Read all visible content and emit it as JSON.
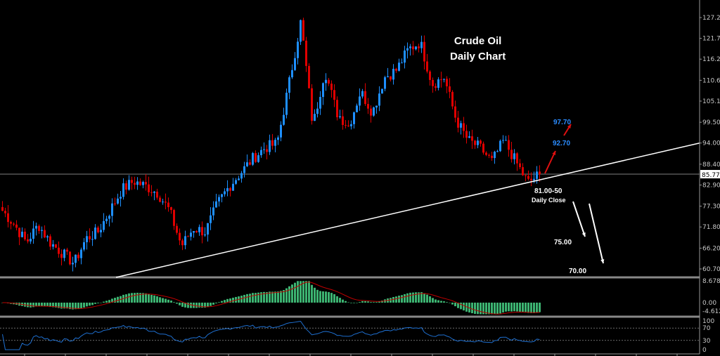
{
  "chart_data": {
    "type": "candlestick",
    "title": "Crude Oil",
    "subtitle": "Daily Chart",
    "price_axis_ticks": [
      "127.20",
      "121.70",
      "116.20",
      "110.60",
      "105.10",
      "99.50",
      "94.00",
      "88.40",
      "82.90",
      "77.30",
      "71.80",
      "66.20",
      "60.70"
    ],
    "ylim": [
      60.7,
      127.2
    ],
    "current_price": "85.77",
    "close_keypoints": [
      76.1,
      72.4,
      67.7,
      72.4,
      67.7,
      64.9,
      62.2,
      68.7,
      70.5,
      76.1,
      81.7,
      83.9,
      82.6,
      80.8,
      76.1,
      66.8,
      71.5,
      70.5,
      77.9,
      82.6,
      86.3,
      90.0,
      92.8,
      93.8,
      109.6,
      126.3,
      98.4,
      113.3,
      102.1,
      98.4,
      107.7,
      102.1,
      111.4,
      113.3,
      118.8,
      120.7,
      109.6,
      111.4,
      100.2,
      94.7,
      92.8,
      89.1,
      94.7,
      89.1,
      83.5,
      85.77
    ],
    "trendline": {
      "start_price": 60.7,
      "end_price": 94.0
    },
    "annotations": {
      "target_1": "92.70",
      "target_2": "97.70",
      "support": "81.00-50",
      "support_note": "Daily Close",
      "downside_1": "75.00",
      "downside_2": "70.00"
    },
    "macd_panel": {
      "ticks": [
        "8.678",
        "0.00",
        "-4.612"
      ],
      "max": 8.678,
      "min": -4.612
    },
    "rsi_panel": {
      "ticks": [
        "100",
        "70",
        "30",
        "0"
      ],
      "levels": [
        70,
        30
      ]
    },
    "colors": {
      "up": "#1e8fff",
      "down": "#e00000",
      "macd_hist": "#3cb371",
      "macd_signal": "#c00000",
      "rsi": "#1e6fd0",
      "trendline": "#ffffff"
    }
  }
}
